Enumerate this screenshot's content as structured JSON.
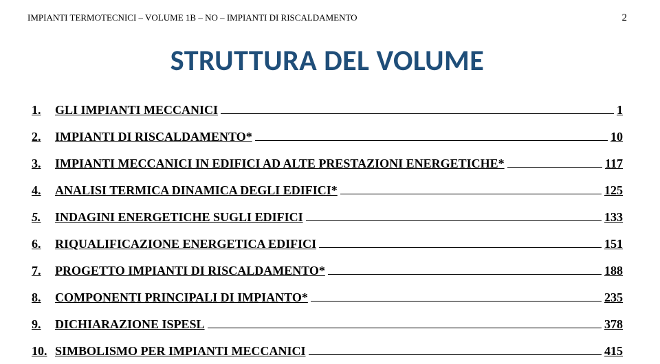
{
  "header": {
    "text": "IMPIANTI TERMOTECNICI – VOLUME 1B – NO – IMPIANTI DI RISCALDAMENTO",
    "page_number": "2"
  },
  "title": "STRUTTURA DEL VOLUME",
  "toc": [
    {
      "num": "1.",
      "label": "GLI IMPIANTI MECCANICI",
      "page": "1",
      "italic_num": false
    },
    {
      "num": "2.",
      "label": "IMPIANTI DI RISCALDAMENTO*",
      "page": "10",
      "italic_num": false
    },
    {
      "num": "3.",
      "label": "IMPIANTI MECCANICI IN EDIFICI AD ALTE PRESTAZIONI ENERGETICHE*",
      "page": "117",
      "italic_num": false
    },
    {
      "num": "4.",
      "label": "ANALISI TERMICA DINAMICA DEGLI EDIFICI*",
      "page": "125",
      "italic_num": false
    },
    {
      "num": "5.",
      "label": "INDAGINI ENERGETICHE SUGLI EDIFICI",
      "page": "133",
      "italic_num": true
    },
    {
      "num": "6.",
      "label": "RIQUALIFICAZIONE ENERGETICA EDIFICI",
      "page": "151",
      "italic_num": false
    },
    {
      "num": "7.",
      "label": "PROGETTO IMPIANTI DI RISCALDAMENTO*",
      "page": "188",
      "italic_num": false
    },
    {
      "num": "8.",
      "label": "COMPONENTI PRINCIPALI DI IMPIANTO*",
      "page": "235",
      "italic_num": false
    },
    {
      "num": "9.",
      "label": "DICHIARAZIONE ISPESL",
      "page": "378",
      "italic_num": false
    },
    {
      "num": "10.",
      "label": "SIMBOLISMO PER IMPIANTI MECCANICI",
      "page": "415",
      "italic_num": false
    }
  ],
  "colors": {
    "title": "#1f4e79",
    "text": "#000000",
    "background": "#ffffff"
  },
  "typography": {
    "title_fontsize": 42,
    "header_fontsize": 13,
    "toc_fontsize": 18
  }
}
